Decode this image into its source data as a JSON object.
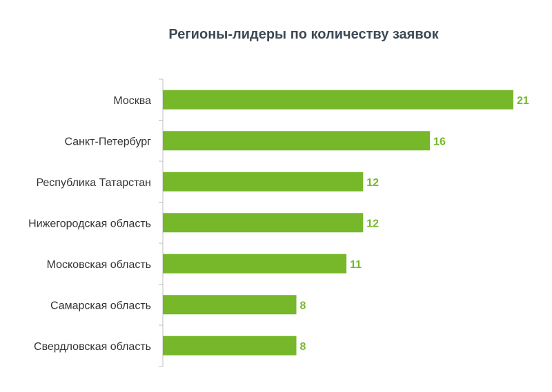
{
  "chart_data": {
    "type": "bar",
    "orientation": "horizontal",
    "title": "Регионы-лидеры по количеству заявок",
    "xlabel": "",
    "ylabel": "",
    "categories": [
      "Москва",
      "Санкт-Петербург",
      "Республика Татарстан",
      "Нижегородская область",
      "Московская область",
      "Самарская область",
      "Свердловская область"
    ],
    "values": [
      21,
      16,
      12,
      12,
      11,
      8,
      8
    ],
    "xlim": [
      0,
      21
    ],
    "grid": false,
    "legend": "none",
    "data_labels": true,
    "bar_color": "#76b82a",
    "label_color": "#76b82a"
  }
}
